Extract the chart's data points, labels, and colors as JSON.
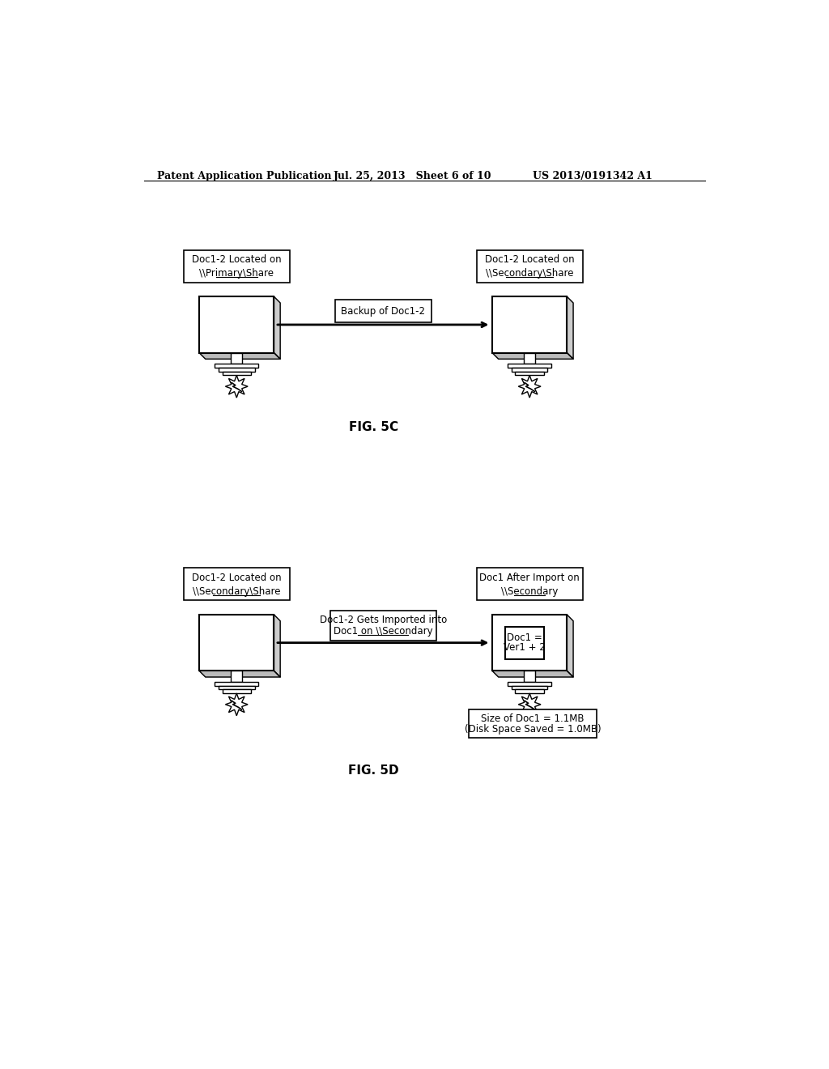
{
  "header_left": "Patent Application Publication",
  "header_mid": "Jul. 25, 2013   Sheet 6 of 10",
  "header_right": "US 2013/0191342 A1",
  "fig5c": {
    "label": "FIG. 5C",
    "left_label_line1": "Doc1-2 Located on",
    "left_label_line2": "\\\\Primary\\Share",
    "right_label_line1": "Doc1-2 Located on",
    "right_label_line2": "\\\\Secondary\\Share",
    "arrow_label": "Backup of Doc1-2"
  },
  "fig5d": {
    "label": "FIG. 5D",
    "left_label_line1": "Doc1-2 Located on",
    "left_label_line2": "\\\\Secondary\\Share",
    "right_label_line1": "Doc1 After Import on",
    "right_label_line2": "\\\\Secondary",
    "arrow_label_line1": "Doc1-2 Gets Imported into",
    "arrow_label_line2": "Doc1 on \\\\Secondary",
    "doc_box_text_line1": "Doc1 =",
    "doc_box_text_line2": "Ver1 + 2",
    "size_label_line1": "Size of Doc1 = 1.1MB",
    "size_label_line2": "(Disk Space Saved = 1.0MB)"
  },
  "bg_color": "#ffffff",
  "text_color": "#000000",
  "font_size_header": 9,
  "font_size_body": 8.5,
  "font_size_fig": 11
}
